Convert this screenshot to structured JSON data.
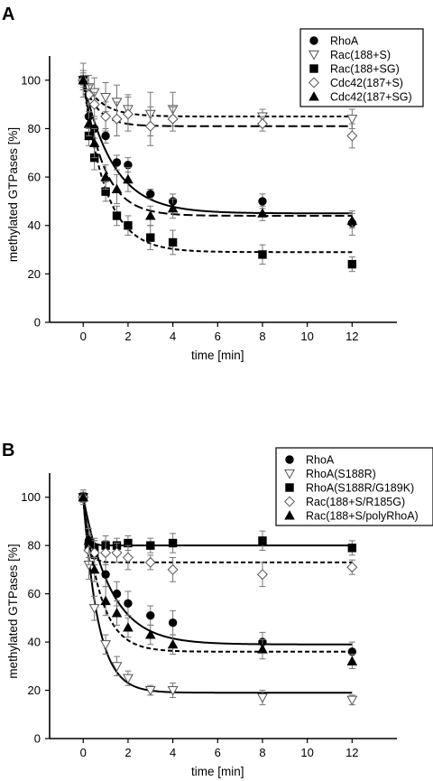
{
  "chart_data": [
    {
      "panel": "A",
      "type": "scatter",
      "xlabel": "time [min]",
      "ylabel": "methylated GTPases [%]",
      "xlim": [
        -1.5,
        14
      ],
      "ylim": [
        0,
        110
      ],
      "xticks": [
        0,
        2,
        4,
        6,
        8,
        10,
        12
      ],
      "yticks": [
        0,
        20,
        40,
        60,
        80,
        100
      ],
      "legend_position": "top-right",
      "series": [
        {
          "name": "RhoA",
          "marker": "circle-filled",
          "fit": "solid",
          "fit_params": {
            "plateau": 45,
            "k": 0.75
          },
          "x": [
            0,
            0.25,
            0.5,
            1,
            1.5,
            2,
            3,
            4,
            8,
            12
          ],
          "y": [
            100,
            85,
            80,
            77,
            66,
            65,
            53,
            50,
            50,
            41
          ],
          "err": [
            2,
            5,
            4,
            3,
            3,
            3,
            2,
            3,
            3,
            5
          ]
        },
        {
          "name": "Rac(188+S)",
          "marker": "triangle-down-open",
          "fit": "short-dash",
          "fit_params": {
            "plateau": 85,
            "k": 1.2
          },
          "x": [
            0,
            0.25,
            0.5,
            1,
            1.5,
            2,
            3,
            4,
            8,
            12
          ],
          "y": [
            100,
            97,
            95,
            93,
            91,
            88,
            86,
            88,
            85,
            84
          ],
          "err": [
            7,
            5,
            6,
            6,
            7,
            6,
            9,
            7,
            3,
            4
          ]
        },
        {
          "name": "Rac(188+SG)",
          "marker": "square-filled",
          "fit": "short-dash",
          "fit_params": {
            "plateau": 29,
            "k": 1.0
          },
          "x": [
            0,
            0.25,
            0.5,
            1,
            1.5,
            2,
            3,
            4,
            8,
            12
          ],
          "y": [
            100,
            77,
            68,
            54,
            44,
            40,
            35,
            33,
            28,
            24
          ],
          "err": [
            2,
            4,
            5,
            4,
            4,
            4,
            5,
            5,
            4,
            3
          ]
        },
        {
          "name": "Cdc42(187+S)",
          "marker": "diamond-open",
          "fit": "long-dash",
          "fit_params": {
            "plateau": 81,
            "k": 1.5
          },
          "x": [
            0,
            0.25,
            0.5,
            1,
            1.5,
            2,
            3,
            4,
            8,
            12
          ],
          "y": [
            100,
            94,
            90,
            85,
            84,
            86,
            81,
            84,
            82,
            77
          ],
          "err": [
            4,
            4,
            5,
            6,
            7,
            7,
            8,
            5,
            3,
            5
          ]
        },
        {
          "name": "Cdc42(187+SG)",
          "marker": "triangle-up-filled",
          "fit": "long-dash",
          "fit_params": {
            "plateau": 44,
            "k": 1.1
          },
          "x": [
            0,
            0.25,
            0.5,
            1,
            1.5,
            2,
            3,
            4,
            8,
            12
          ],
          "y": [
            100,
            82,
            74,
            60,
            55,
            59,
            44,
            47,
            45,
            42
          ],
          "err": [
            3,
            5,
            6,
            5,
            6,
            5,
            4,
            4,
            3,
            3
          ]
        }
      ]
    },
    {
      "panel": "B",
      "type": "scatter",
      "xlabel": "time [min]",
      "ylabel": "methylated GTPases [%]",
      "xlim": [
        -1.5,
        14
      ],
      "ylim": [
        0,
        110
      ],
      "xticks": [
        0,
        2,
        4,
        6,
        8,
        10,
        12
      ],
      "yticks": [
        0,
        20,
        40,
        60,
        80,
        100
      ],
      "legend_position": "top-right",
      "series": [
        {
          "name": "RhoA",
          "marker": "circle-filled",
          "fit": "solid",
          "fit_params": {
            "plateau": 39,
            "k": 0.8
          },
          "x": [
            0,
            0.25,
            0.5,
            1,
            1.5,
            2,
            3,
            4,
            8,
            12
          ],
          "y": [
            100,
            82,
            76,
            68,
            60,
            56,
            51,
            48,
            40,
            36
          ],
          "err": [
            2,
            5,
            6,
            5,
            5,
            5,
            4,
            5,
            4,
            4
          ]
        },
        {
          "name": "RhoA(S188R)",
          "marker": "triangle-down-open",
          "fit": "solid",
          "fit_params": {
            "plateau": 19,
            "k": 1.5
          },
          "x": [
            0,
            0.25,
            0.5,
            1,
            1.5,
            2,
            3,
            4,
            8,
            12
          ],
          "y": [
            100,
            72,
            54,
            39,
            30,
            25,
            20,
            20,
            17,
            16
          ],
          "err": [
            2,
            6,
            5,
            4,
            4,
            3,
            2,
            3,
            3,
            2
          ]
        },
        {
          "name": "RhoA(S188R/G189K)",
          "marker": "square-filled",
          "fit": "solid",
          "fit_params": {
            "plateau": 80,
            "k": 6
          },
          "x": [
            0,
            0.25,
            0.5,
            1,
            1.5,
            2,
            3,
            4,
            8,
            12
          ],
          "y": [
            100,
            80,
            79,
            80,
            80,
            81,
            80,
            81,
            82,
            79
          ],
          "err": [
            2,
            5,
            4,
            4,
            3,
            3,
            3,
            4,
            4,
            3
          ]
        },
        {
          "name": "Rac(188+S/R185G)",
          "marker": "diamond-open",
          "fit": "short-dash",
          "fit_params": {
            "plateau": 73,
            "k": 5
          },
          "x": [
            0,
            0.25,
            0.5,
            1,
            1.5,
            2,
            3,
            4,
            8,
            12
          ],
          "y": [
            100,
            78,
            77,
            77,
            77,
            75,
            73,
            70,
            68,
            71
          ],
          "err": [
            3,
            6,
            5,
            5,
            4,
            5,
            3,
            5,
            5,
            3
          ]
        },
        {
          "name": "Rac(188+S/polyRhoA)",
          "marker": "triangle-up-filled",
          "fit": "short-dash",
          "fit_params": {
            "plateau": 36,
            "k": 1.3
          },
          "x": [
            0,
            0.25,
            0.5,
            1,
            1.5,
            2,
            3,
            4,
            8,
            12
          ],
          "y": [
            100,
            82,
            70,
            57,
            52,
            46,
            43,
            39,
            37,
            32
          ],
          "err": [
            2,
            5,
            5,
            6,
            5,
            4,
            4,
            4,
            4,
            3
          ]
        }
      ]
    }
  ]
}
